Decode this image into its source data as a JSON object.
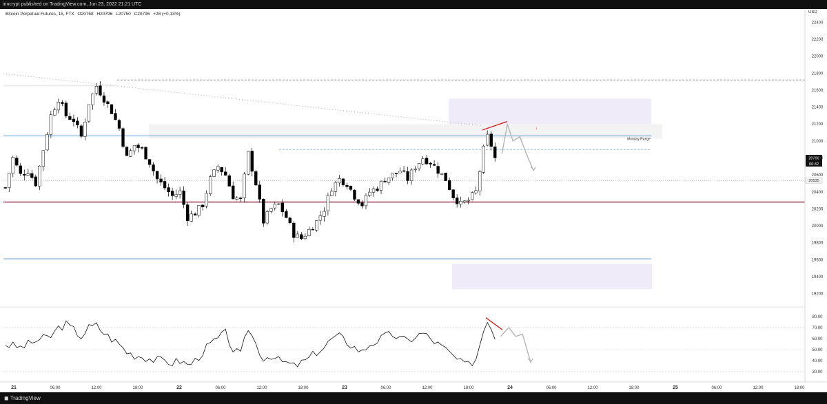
{
  "header": {
    "published": "irincrypt published on TradingView.com, Jun 23, 2022 21:21 UTC"
  },
  "legend": {
    "symbol": "Bitcoin Perpetual Futures, 15, FTX",
    "open": "O20768",
    "high": "H20796",
    "low": "L20750",
    "close": "C20796",
    "change": "+28 (+0.13%)"
  },
  "axis": {
    "currency": "USD"
  },
  "footer": {
    "brand": "TradingView"
  },
  "colors": {
    "candle": "#000000",
    "level": "#86b4e8",
    "red_line": "#8c1c3a",
    "zone": "#f0ebf8",
    "rsi": "#111111",
    "divergence": "#d02424",
    "projection": "#b5b5b5"
  },
  "chart_data": {
    "type": "candlestick",
    "title": "Bitcoin Perpetual Futures, 15, FTX",
    "price_axis": {
      "ylim": [
        19050,
        22550
      ],
      "ticks": [
        19200,
        19400,
        19600,
        19800,
        20000,
        20200,
        20400,
        20600,
        20800,
        21000,
        21200,
        21400,
        21600,
        21800,
        22000,
        22200,
        22400
      ]
    },
    "time_axis": {
      "labels": [
        "21",
        "06:00",
        "12:00",
        "18:00",
        "22",
        "06:00",
        "12:00",
        "18:00",
        "23",
        "06:00",
        "12:00",
        "18:00",
        "24",
        "06:00",
        "12:00",
        "18:00",
        "25",
        "06:00",
        "12:00",
        "18:00"
      ]
    },
    "price_path": [
      [
        0,
        20450
      ],
      [
        2,
        20800
      ],
      [
        4,
        20600
      ],
      [
        6,
        20650
      ],
      [
        8,
        20500
      ],
      [
        10,
        20900
      ],
      [
        12,
        21300
      ],
      [
        14,
        21500
      ],
      [
        16,
        21300
      ],
      [
        18,
        21250
      ],
      [
        20,
        21050
      ],
      [
        22,
        21450
      ],
      [
        24,
        21650
      ],
      [
        26,
        21500
      ],
      [
        28,
        21350
      ],
      [
        30,
        21150
      ],
      [
        32,
        20800
      ],
      [
        34,
        20950
      ],
      [
        36,
        20900
      ],
      [
        38,
        20750
      ],
      [
        40,
        20550
      ],
      [
        42,
        20450
      ],
      [
        44,
        20350
      ],
      [
        46,
        20400
      ],
      [
        48,
        20100
      ],
      [
        50,
        20150
      ],
      [
        52,
        20250
      ],
      [
        54,
        20550
      ],
      [
        56,
        20700
      ],
      [
        58,
        20600
      ],
      [
        60,
        20350
      ],
      [
        62,
        20300
      ],
      [
        64,
        20850
      ],
      [
        66,
        20500
      ],
      [
        68,
        20050
      ],
      [
        70,
        20200
      ],
      [
        72,
        20250
      ],
      [
        74,
        20100
      ],
      [
        76,
        19900
      ],
      [
        78,
        19850
      ],
      [
        80,
        19950
      ],
      [
        82,
        20050
      ],
      [
        84,
        20200
      ],
      [
        86,
        20450
      ],
      [
        88,
        20550
      ],
      [
        90,
        20500
      ],
      [
        92,
        20350
      ],
      [
        94,
        20250
      ],
      [
        96,
        20400
      ],
      [
        98,
        20450
      ],
      [
        100,
        20550
      ],
      [
        102,
        20600
      ],
      [
        104,
        20650
      ],
      [
        106,
        20550
      ],
      [
        108,
        20700
      ],
      [
        110,
        20800
      ],
      [
        112,
        20750
      ],
      [
        114,
        20650
      ],
      [
        116,
        20550
      ],
      [
        118,
        20350
      ],
      [
        120,
        20250
      ],
      [
        122,
        20300
      ],
      [
        124,
        20400
      ],
      [
        126,
        20900
      ],
      [
        127,
        21050
      ],
      [
        128,
        20950
      ],
      [
        129,
        20796
      ]
    ],
    "candle_count": 130,
    "last_price": "20796",
    "countdown": "06:32",
    "secondary_price": "20535",
    "levels": [
      {
        "price": 21060,
        "style": "solid",
        "color": "#86b4e8",
        "label": "Monday Range"
      },
      {
        "price": 19610,
        "style": "solid",
        "color": "#86b4e8"
      },
      {
        "price": 20280,
        "style": "solid",
        "color": "#8c1c3a"
      },
      {
        "price": 21720,
        "style": "dashed",
        "color": "#888888"
      },
      {
        "price": 20900,
        "style": "dashed",
        "color": "#86b4e8"
      },
      {
        "price": 20535,
        "style": "dotted",
        "color": "#999999"
      }
    ],
    "zones": [
      {
        "from_price": 21200,
        "to_price": 21500
      },
      {
        "from_price": 19250,
        "to_price": 19550
      }
    ],
    "rsi": {
      "ticks": [
        30,
        40,
        50,
        60,
        70,
        80
      ],
      "ylim": [
        25,
        85
      ],
      "bands": [
        30,
        70
      ],
      "path": [
        [
          0,
          55
        ],
        [
          4,
          52
        ],
        [
          8,
          58
        ],
        [
          12,
          62
        ],
        [
          14,
          70
        ],
        [
          16,
          73
        ],
        [
          18,
          68
        ],
        [
          20,
          62
        ],
        [
          22,
          70
        ],
        [
          24,
          72
        ],
        [
          26,
          65
        ],
        [
          28,
          60
        ],
        [
          30,
          55
        ],
        [
          32,
          48
        ],
        [
          34,
          45
        ],
        [
          36,
          44
        ],
        [
          38,
          42
        ],
        [
          40,
          40
        ],
        [
          42,
          40
        ],
        [
          44,
          38
        ],
        [
          46,
          40
        ],
        [
          48,
          36
        ],
        [
          50,
          40
        ],
        [
          52,
          48
        ],
        [
          54,
          55
        ],
        [
          56,
          60
        ],
        [
          58,
          65
        ],
        [
          60,
          50
        ],
        [
          62,
          45
        ],
        [
          64,
          70
        ],
        [
          66,
          55
        ],
        [
          68,
          42
        ],
        [
          70,
          45
        ],
        [
          72,
          40
        ],
        [
          74,
          38
        ],
        [
          76,
          35
        ],
        [
          78,
          38
        ],
        [
          80,
          42
        ],
        [
          82,
          48
        ],
        [
          84,
          52
        ],
        [
          86,
          60
        ],
        [
          88,
          62
        ],
        [
          90,
          57
        ],
        [
          92,
          52
        ],
        [
          94,
          48
        ],
        [
          96,
          55
        ],
        [
          98,
          58
        ],
        [
          100,
          62
        ],
        [
          102,
          64
        ],
        [
          104,
          60
        ],
        [
          106,
          58
        ],
        [
          108,
          62
        ],
        [
          110,
          65
        ],
        [
          112,
          60
        ],
        [
          114,
          55
        ],
        [
          116,
          50
        ],
        [
          118,
          44
        ],
        [
          120,
          38
        ],
        [
          122,
          36
        ],
        [
          124,
          42
        ],
        [
          126,
          68
        ],
        [
          127,
          78
        ],
        [
          128,
          70
        ],
        [
          129,
          62
        ]
      ]
    }
  }
}
